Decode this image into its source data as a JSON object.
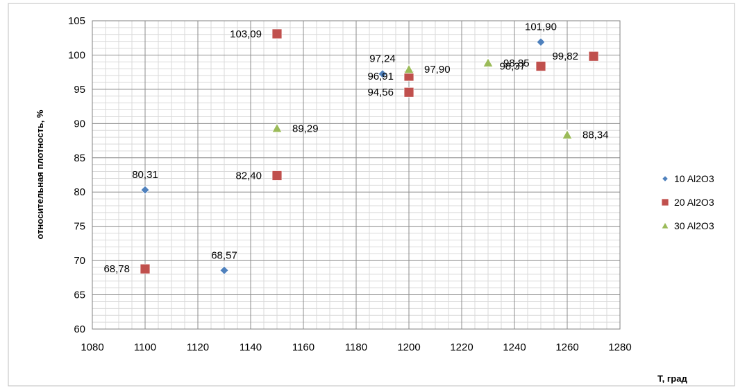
{
  "chart_data": {
    "type": "scatter",
    "title": "",
    "xlabel": "Т, град",
    "ylabel": "относительная плотность, %",
    "xlim": [
      1080,
      1280
    ],
    "ylim": [
      60,
      105
    ],
    "xticks": [
      1080,
      1100,
      1120,
      1140,
      1160,
      1180,
      1200,
      1220,
      1240,
      1260,
      1280
    ],
    "yticks": [
      60,
      65,
      70,
      75,
      80,
      85,
      90,
      95,
      100,
      105
    ],
    "grid": true,
    "legend_position": "right",
    "series": [
      {
        "name": "10 Al2O3",
        "marker": "diamond",
        "color": "#4F81BD",
        "points": [
          {
            "x": 1100,
            "y": 80.31,
            "label": "80,31"
          },
          {
            "x": 1130,
            "y": 68.57,
            "label": "68,57"
          },
          {
            "x": 1190,
            "y": 97.24,
            "label": "97,24"
          },
          {
            "x": 1250,
            "y": 101.9,
            "label": "101,90"
          }
        ]
      },
      {
        "name": "20 Al2O3",
        "marker": "square",
        "color": "#C0504D",
        "points": [
          {
            "x": 1100,
            "y": 68.78,
            "label": "68,78"
          },
          {
            "x": 1150,
            "y": 103.09,
            "label": "103,09"
          },
          {
            "x": 1150,
            "y": 82.4,
            "label": "82,40"
          },
          {
            "x": 1200,
            "y": 96.91,
            "label": "96,91"
          },
          {
            "x": 1200,
            "y": 94.56,
            "label": "94,56"
          },
          {
            "x": 1250,
            "y": 98.37,
            "label": "98,37"
          },
          {
            "x": 1270,
            "y": 99.82,
            "label": "99,82"
          }
        ]
      },
      {
        "name": "30 Al2O3",
        "marker": "triangle",
        "color": "#9BBB59",
        "points": [
          {
            "x": 1150,
            "y": 89.29,
            "label": "89,29"
          },
          {
            "x": 1200,
            "y": 97.9,
            "label": "97,90"
          },
          {
            "x": 1230,
            "y": 98.85,
            "label": "98,85"
          },
          {
            "x": 1260,
            "y": 88.34,
            "label": "88,34"
          }
        ]
      }
    ]
  }
}
